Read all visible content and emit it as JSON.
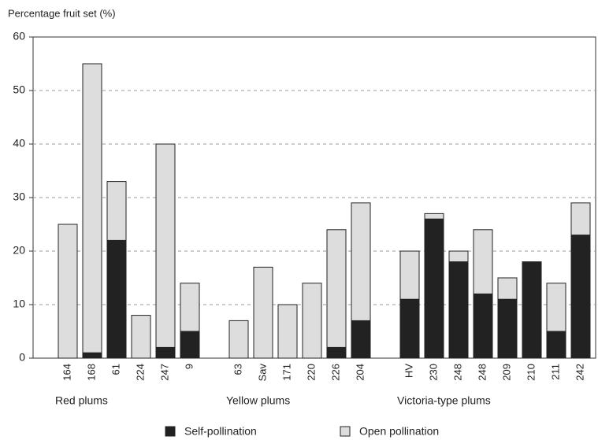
{
  "chart_data": {
    "type": "stacked-bar",
    "y_label": "Percentage fruit set (%)",
    "categories": [
      "164",
      "168",
      "61",
      "224",
      "247",
      "9",
      null,
      "63",
      "Sav",
      "171",
      "220",
      "226",
      "204",
      null,
      "HV",
      "230",
      "248",
      "248",
      "209",
      "210",
      "211",
      "242"
    ],
    "groups": [
      "Red plums",
      "Yellow plums",
      "Victoria-type plums"
    ],
    "series": [
      {
        "name": "Self-pollination",
        "color": "#222222",
        "values": [
          0,
          1,
          22,
          0,
          2,
          5,
          null,
          0,
          0,
          0,
          0,
          2,
          7,
          null,
          11,
          26,
          18,
          12,
          11,
          18,
          5,
          23
        ]
      },
      {
        "name": "Open pollination",
        "color": "#dddddd",
        "values": [
          25,
          54,
          11,
          8,
          38,
          9,
          null,
          7,
          17,
          10,
          14,
          22,
          22,
          null,
          9,
          1,
          2,
          12,
          4,
          0,
          9,
          6
        ]
      }
    ],
    "ylim": [
      0,
      60
    ],
    "yticks": [
      0,
      10,
      20,
      30,
      40,
      50,
      60
    ],
    "grid": true
  }
}
